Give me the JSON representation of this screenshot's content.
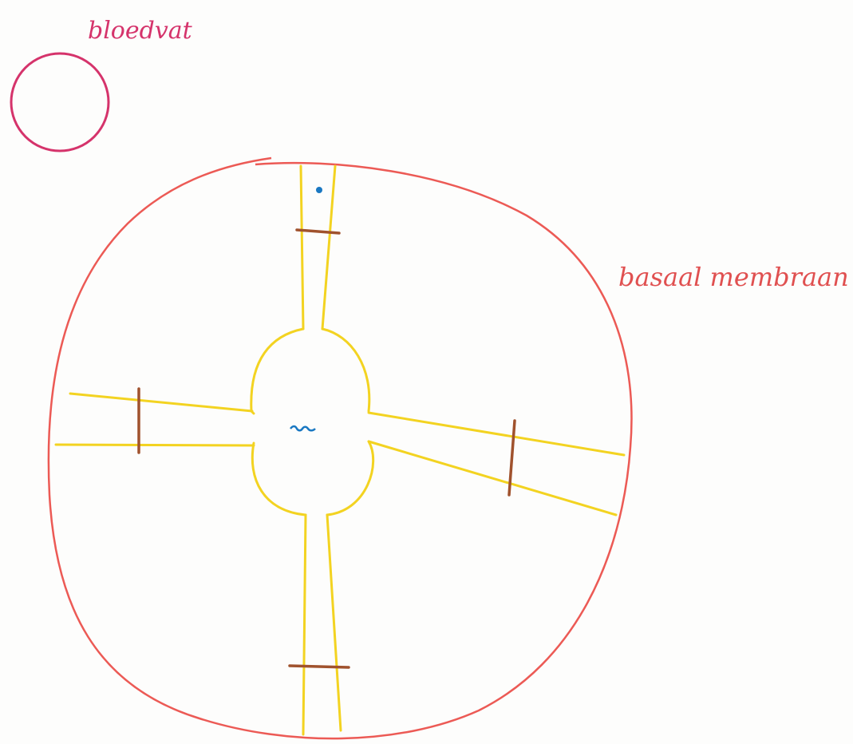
{
  "labels": {
    "blood_vessel": "bloedvat",
    "membrane": "basaal membraan"
  }
}
